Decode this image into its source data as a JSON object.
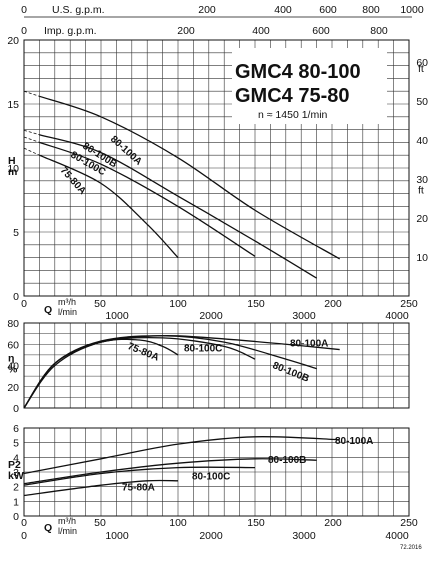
{
  "header": {
    "usgpm_label": "U.S. g.p.m.",
    "usgpm_ticks": [
      "0",
      "200",
      "400",
      "600",
      "800",
      "1000"
    ],
    "impgpm_label": "Imp. g.p.m.",
    "impgpm_ticks": [
      "0",
      "200",
      "400",
      "600",
      "800"
    ]
  },
  "title": {
    "line1": "GMC4 80-100",
    "line2": "GMC4 75-80",
    "speed": "n ≈ 1450 1/min"
  },
  "footer": {
    "q_label": "Q",
    "m3h_unit": "m³/h",
    "lmin_unit": "l/min",
    "m3h_ticks": [
      "0",
      "50",
      "100",
      "150",
      "200",
      "250"
    ],
    "lmin_ticks": [
      "0",
      "1000",
      "2000",
      "3000",
      "4000"
    ],
    "code": "72.2016"
  },
  "top_q_axis": {
    "m3h_ticks": [
      "0",
      "50",
      "100",
      "150",
      "200",
      "250"
    ],
    "lmin_ticks": [
      "0",
      "1000",
      "2000",
      "3000",
      "4000"
    ]
  },
  "chart_data": [
    {
      "type": "line",
      "name_axis": "H",
      "ylabel": "H\nm",
      "ylabel_right": "ft",
      "xlim": [
        0,
        250
      ],
      "ylim": [
        0,
        20
      ],
      "y_ticks": [
        "0",
        "5",
        "10",
        "15",
        "20"
      ],
      "y_ticks_right": [
        "10",
        "20",
        "30",
        "40",
        "50",
        "60"
      ],
      "series": [
        {
          "name": "80-100A",
          "x": [
            10,
            50,
            100,
            150,
            205
          ],
          "y": [
            15.6,
            14.0,
            10.8,
            6.7,
            2.9
          ]
        },
        {
          "name": "80-100B",
          "x": [
            10,
            50,
            100,
            150,
            190
          ],
          "y": [
            12.6,
            11.2,
            7.8,
            4.3,
            1.4
          ]
        },
        {
          "name": "80-100C",
          "x": [
            10,
            50,
            100,
            150
          ],
          "y": [
            12.0,
            10.3,
            7.0,
            3.1
          ]
        },
        {
          "name": "75-80A",
          "x": [
            10,
            50,
            80,
            100
          ],
          "y": [
            11.0,
            8.8,
            5.6,
            3.0
          ]
        }
      ]
    },
    {
      "type": "line",
      "name_axis": "eta",
      "ylabel": "η\n%",
      "xlim": [
        0,
        250
      ],
      "ylim": [
        0,
        80
      ],
      "y_ticks": [
        "0",
        "20",
        "40",
        "60",
        "80"
      ],
      "series": [
        {
          "name": "80-100A",
          "x": [
            0,
            20,
            50,
            90,
            130,
            170,
            205
          ],
          "y": [
            0,
            40,
            62,
            68,
            65,
            60,
            55
          ]
        },
        {
          "name": "80-100B",
          "x": [
            0,
            20,
            50,
            90,
            130,
            170,
            190
          ],
          "y": [
            0,
            42,
            63,
            68,
            62,
            46,
            37
          ]
        },
        {
          "name": "80-100C",
          "x": [
            0,
            20,
            50,
            90,
            130,
            150
          ],
          "y": [
            0,
            42,
            62,
            66,
            58,
            46
          ]
        },
        {
          "name": "75-80A",
          "x": [
            0,
            20,
            50,
            75,
            90,
            100
          ],
          "y": [
            0,
            42,
            62,
            64,
            58,
            50
          ]
        }
      ]
    },
    {
      "type": "line",
      "name_axis": "P2",
      "ylabel": "P2\nkW",
      "xlim": [
        0,
        250
      ],
      "ylim": [
        0,
        6
      ],
      "y_ticks": [
        "0",
        "1",
        "2",
        "3",
        "4",
        "5",
        "6"
      ],
      "series": [
        {
          "name": "80-100A",
          "x": [
            0,
            50,
            100,
            150,
            205
          ],
          "y": [
            2.9,
            3.9,
            4.9,
            5.4,
            5.2
          ]
        },
        {
          "name": "80-100B",
          "x": [
            0,
            50,
            100,
            150,
            190
          ],
          "y": [
            2.2,
            3.0,
            3.6,
            3.9,
            3.8
          ]
        },
        {
          "name": "80-100C",
          "x": [
            0,
            50,
            100,
            150
          ],
          "y": [
            2.1,
            2.9,
            3.3,
            3.3
          ]
        },
        {
          "name": "75-80A",
          "x": [
            0,
            50,
            80,
            100
          ],
          "y": [
            1.4,
            2.1,
            2.4,
            2.4
          ]
        }
      ]
    }
  ]
}
